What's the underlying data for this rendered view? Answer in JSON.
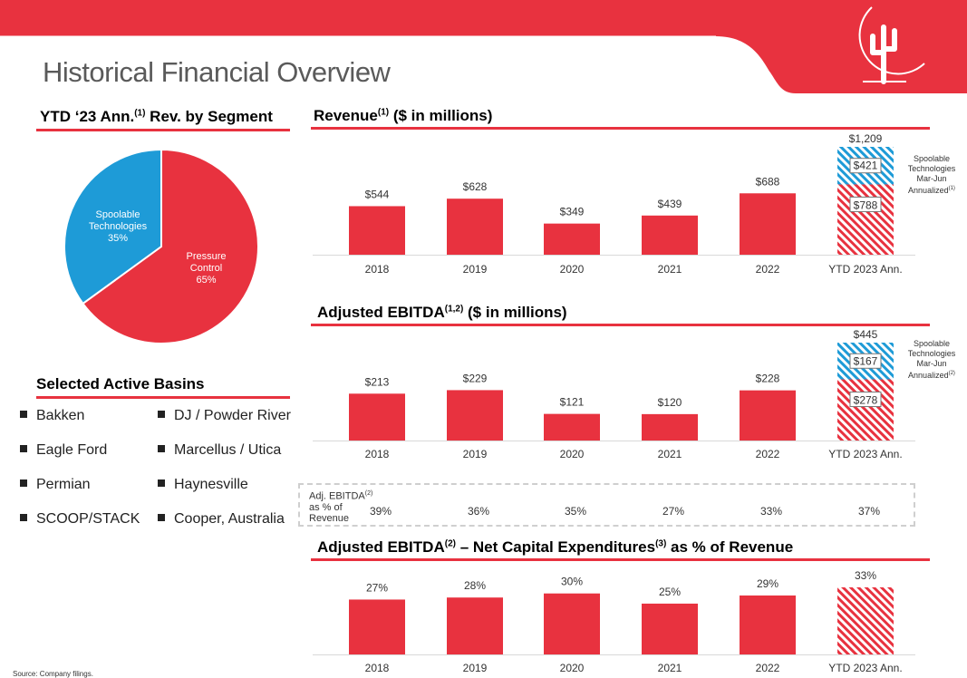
{
  "page": {
    "title": "Historical Financial Overview",
    "source": "Source: Company filings.",
    "accent_color": "#e8323f",
    "secondary_color": "#1e9bd7",
    "logo": "cactus-sun-logo"
  },
  "segment": {
    "title_main": "YTD ‘23 Ann.",
    "title_sup": "(1)",
    "title_tail": " Rev. by Segment"
  },
  "basins": {
    "title": "Selected Active Basins",
    "items": [
      "Bakken",
      "DJ / Powder River",
      "Eagle Ford",
      "Marcellus / Utica",
      "Permian",
      "Haynesville",
      "SCOOP/STACK",
      "Cooper, Australia"
    ]
  },
  "revenue": {
    "title_main": "Revenue",
    "title_sup": "(1)",
    "title_tail": " ($ in millions)",
    "note_lines": [
      "Spoolable",
      "Technologies",
      "Mar-Jun",
      "Annualized"
    ],
    "note_sup": "(1)"
  },
  "ebitda": {
    "title_main": "Adjusted EBITDA",
    "title_sup": "(1,2)",
    "title_tail": " ($ in millions)",
    "note_lines": [
      "Spoolable",
      "Technologies",
      "Mar-Jun",
      "Annualized"
    ],
    "note_sup": "(2)"
  },
  "margin": {
    "label_line1": "Adj. EBITDA",
    "label_sup": "(2)",
    "label_line2": "as % of",
    "label_line3": "Revenue",
    "values": [
      "39%",
      "36%",
      "35%",
      "27%",
      "33%",
      "37%"
    ]
  },
  "capex": {
    "title_a": "Adjusted EBITDA",
    "title_a_sup": "(2)",
    "title_b": " – Net Capital Expenditures",
    "title_b_sup": "(3)",
    "title_c": " as % of Revenue"
  },
  "chart_data": [
    {
      "id": "segment",
      "type": "pie",
      "labels": [
        "Pressure Control",
        "Spoolable Technologies"
      ],
      "values": [
        65,
        35
      ],
      "value_labels": [
        "65%",
        "35%"
      ],
      "colors": [
        "#e8323f",
        "#1e9bd7"
      ]
    },
    {
      "id": "revenue",
      "type": "bar",
      "categories": [
        "2018",
        "2019",
        "2020",
        "2021",
        "2022",
        "YTD 2023 Ann."
      ],
      "values": [
        544,
        628,
        349,
        439,
        688,
        788
      ],
      "value_labels": [
        "$544",
        "$628",
        "$349",
        "$439",
        "$688",
        "$788"
      ],
      "stack_value": 421,
      "stack_label": "$421",
      "total_value": 1209,
      "total_label": "$1,209",
      "ylim": [
        0,
        1209
      ]
    },
    {
      "id": "ebitda",
      "type": "bar",
      "categories": [
        "2018",
        "2019",
        "2020",
        "2021",
        "2022",
        "YTD 2023 Ann."
      ],
      "values": [
        213,
        229,
        121,
        120,
        228,
        278
      ],
      "value_labels": [
        "$213",
        "$229",
        "$121",
        "$120",
        "$228",
        "$278"
      ],
      "stack_value": 167,
      "stack_label": "$167",
      "total_value": 445,
      "total_label": "$445",
      "ylim": [
        0,
        445
      ]
    },
    {
      "id": "capex",
      "type": "bar",
      "categories": [
        "2018",
        "2019",
        "2020",
        "2021",
        "2022",
        "YTD 2023 Ann."
      ],
      "values": [
        27,
        28,
        30,
        25,
        29,
        33
      ],
      "value_labels": [
        "27%",
        "28%",
        "30%",
        "25%",
        "29%",
        "33%"
      ],
      "ylim": [
        0,
        36
      ]
    }
  ]
}
